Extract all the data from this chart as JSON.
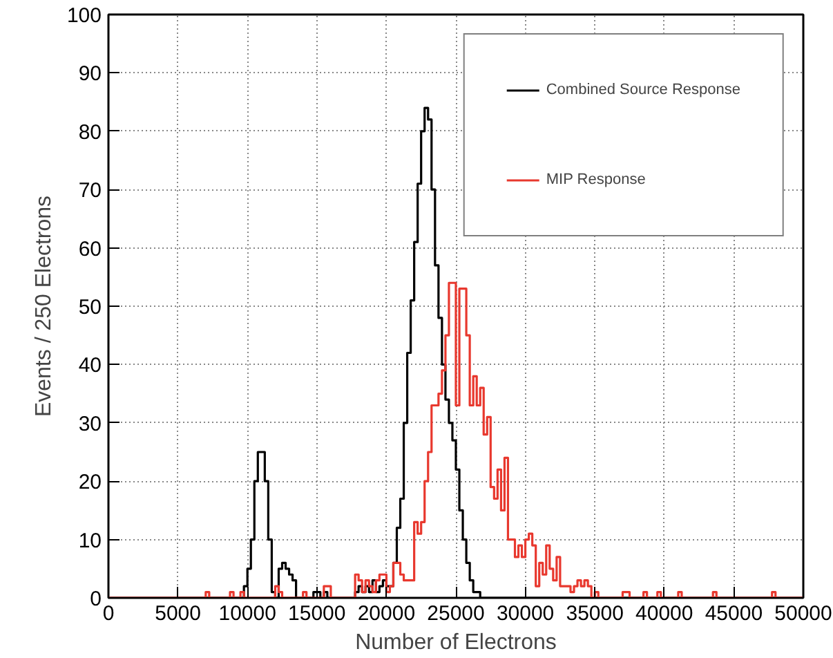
{
  "chart_data": {
    "type": "histogram",
    "xlabel": "Number of Electrons",
    "ylabel": "Events / 250 Electrons",
    "bins": [
      0,
      250,
      500,
      750,
      1000,
      1250,
      1500,
      1750,
      2000,
      2250,
      2500,
      2750,
      3000,
      3250,
      3500,
      3750,
      4000,
      4250,
      4500,
      4750,
      5000,
      5250,
      5500,
      5750,
      6000,
      6250,
      6500,
      6750,
      7000,
      7250,
      7500,
      7750,
      8000,
      8250,
      8500,
      8750,
      9000,
      9250,
      9500,
      9750,
      10000,
      10250,
      10500,
      10750,
      11000,
      11250,
      11500,
      11750,
      12000,
      12250,
      12500,
      12750,
      13000,
      13250,
      13500,
      13750,
      14000,
      14250,
      14500,
      14750,
      15000,
      15250,
      15500,
      15750,
      16000,
      16250,
      16500,
      16750,
      17000,
      17250,
      17500,
      17750,
      18000,
      18250,
      18500,
      18750,
      19000,
      19250,
      19500,
      19750,
      20000,
      20250,
      20500,
      20750,
      21000,
      21250,
      21500,
      21750,
      22000,
      22250,
      22500,
      22750,
      23000,
      23250,
      23500,
      23750,
      24000,
      24250,
      24500,
      24750,
      25000,
      25250,
      25500,
      25750,
      26000,
      26250,
      26500,
      26750,
      27000,
      27250,
      27500,
      27750,
      28000,
      28250,
      28500,
      28750,
      29000,
      29250,
      29500,
      29750,
      30000,
      30250,
      30500,
      30750,
      31000,
      31250,
      31500,
      31750,
      32000,
      32250,
      32500,
      32750,
      33000,
      33250,
      33500,
      33750,
      34000,
      34250,
      34500,
      34750,
      35000,
      35250,
      35500,
      35750,
      36000,
      36250,
      36500,
      36750,
      37000,
      37250,
      37500,
      37750,
      38000,
      38250,
      38500,
      38750,
      39000,
      39250,
      39500,
      39750,
      40000,
      40250,
      40500,
      40750,
      41000,
      41250,
      41500,
      41750,
      42000,
      42250,
      42500,
      42750,
      43000,
      43250,
      43500,
      43750,
      44000,
      44250,
      44500,
      44750,
      45000,
      45250,
      45500,
      45750,
      46000,
      46250,
      46500,
      46750,
      47000,
      47250,
      47500,
      47750,
      48000,
      48250,
      48500,
      48750,
      49000,
      49250,
      49500,
      49750,
      50000
    ],
    "series": [
      {
        "name": "Combined Source Response",
        "color": "#000000",
        "values": [
          0,
          0,
          0,
          0,
          0,
          0,
          0,
          0,
          0,
          0,
          0,
          0,
          0,
          0,
          0,
          0,
          0,
          0,
          0,
          0,
          0,
          0,
          0,
          0,
          0,
          0,
          0,
          0,
          0,
          0,
          0,
          0,
          0,
          0,
          0,
          0,
          0,
          0,
          0,
          2,
          5,
          10,
          20,
          25,
          25,
          20,
          10,
          1,
          0,
          5,
          6,
          5,
          4,
          3,
          0,
          0,
          0,
          0,
          0,
          1,
          1,
          0,
          1,
          0,
          0,
          0,
          0,
          0,
          0,
          0,
          0,
          1,
          2,
          1,
          2,
          1,
          3,
          1,
          2,
          3,
          2,
          2,
          6,
          12,
          17,
          30,
          42,
          51,
          61,
          71,
          80,
          84,
          82,
          70,
          57,
          48,
          40,
          34,
          30,
          27,
          22,
          15,
          10,
          6,
          3,
          1,
          1,
          0,
          0,
          0,
          0,
          0,
          0,
          0,
          0,
          0,
          0,
          0,
          0,
          0,
          0,
          0,
          0,
          0,
          0,
          0,
          0,
          0,
          0,
          0,
          0,
          0,
          0,
          0,
          0,
          0,
          0,
          0,
          0,
          0,
          0,
          0,
          0,
          0,
          0,
          0,
          0,
          0,
          0,
          0,
          0,
          0,
          0,
          0,
          0,
          0,
          0,
          0,
          0,
          0,
          0,
          0,
          0,
          0,
          0,
          0,
          0,
          0,
          0,
          0,
          0,
          0,
          0,
          0,
          0,
          0,
          0,
          0,
          0,
          0,
          0,
          0,
          0,
          0,
          0,
          0,
          0,
          0,
          0,
          0,
          0,
          0,
          0,
          0,
          0,
          0,
          0,
          0,
          0,
          0
        ]
      },
      {
        "name": "MIP Response",
        "color": "#e8382e",
        "values": [
          0,
          0,
          0,
          0,
          0,
          0,
          0,
          0,
          0,
          0,
          0,
          0,
          0,
          0,
          0,
          0,
          0,
          0,
          0,
          0,
          0,
          0,
          0,
          0,
          0,
          0,
          0,
          0,
          1,
          0,
          0,
          0,
          0,
          0,
          0,
          1,
          0,
          0,
          1,
          0,
          0,
          0,
          0,
          0,
          0,
          0,
          0,
          0,
          2,
          1,
          0,
          0,
          0,
          0,
          0,
          0,
          1,
          0,
          0,
          0,
          0,
          0,
          2,
          2,
          0,
          0,
          0,
          0,
          0,
          0,
          0,
          4,
          3,
          1,
          3,
          2,
          1,
          3,
          4,
          4,
          1,
          2,
          6,
          6,
          4,
          3,
          3,
          3,
          13,
          11,
          13,
          20,
          25,
          33,
          33,
          35,
          39,
          45,
          54,
          54,
          33,
          53,
          53,
          45,
          33,
          38,
          33,
          36,
          28,
          31,
          19,
          17,
          22,
          15,
          24,
          10,
          10,
          7,
          9,
          7,
          10,
          11,
          9,
          2,
          6,
          4,
          9,
          5,
          3,
          7,
          2,
          2,
          2,
          1,
          2,
          3,
          2,
          3,
          2,
          0,
          1,
          0,
          0,
          0,
          0,
          0,
          0,
          0,
          1,
          1,
          0,
          0,
          0,
          0,
          1,
          0,
          0,
          0,
          1,
          0,
          0,
          0,
          0,
          0,
          1,
          0,
          0,
          0,
          0,
          0,
          0,
          0,
          0,
          0,
          1,
          0,
          0,
          0,
          0,
          0,
          0,
          0,
          0,
          0,
          0,
          0,
          0,
          0,
          0,
          0,
          0,
          1,
          0,
          0,
          0,
          0,
          0,
          0,
          0,
          0
        ]
      }
    ],
    "xlim": [
      0,
      50000
    ],
    "ylim": [
      0,
      100
    ],
    "xticks": [
      0,
      5000,
      10000,
      15000,
      20000,
      25000,
      30000,
      35000,
      40000,
      45000,
      50000
    ],
    "yticks": [
      0,
      10,
      20,
      30,
      40,
      50,
      60,
      70,
      80,
      90,
      100
    ],
    "grid": true,
    "legend": "top right"
  }
}
